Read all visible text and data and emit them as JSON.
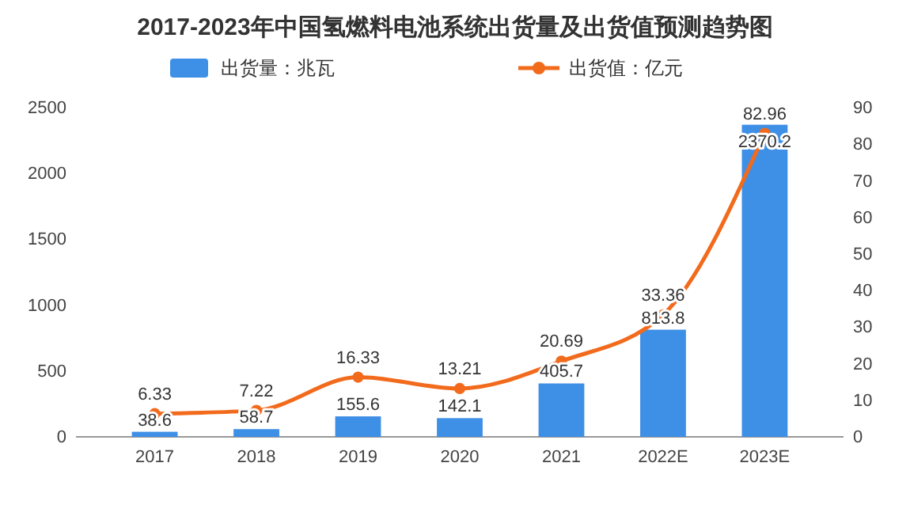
{
  "chart_data": {
    "type": "bar",
    "title": "2017-2023年中国氢燃料电池系统出货量及出货值预测趋势图",
    "categories": [
      "2017",
      "2018",
      "2019",
      "2020",
      "2021",
      "2022E",
      "2023E"
    ],
    "series": [
      {
        "name": "出货量：兆瓦",
        "color": "#3e8fe6",
        "values": [
          38.6,
          58.7,
          155.6,
          142.1,
          405.7,
          813.8,
          2370.2
        ]
      },
      {
        "name": "出货值：亿元",
        "type": "line",
        "axis": "y2",
        "color": "#f26b1d",
        "marker": "circle",
        "values": [
          6.33,
          7.22,
          16.33,
          13.21,
          20.69,
          33.36,
          82.96
        ]
      }
    ],
    "ylim": [
      0,
      2500
    ],
    "yticks": [
      0,
      500,
      1000,
      1500,
      2000,
      2500
    ],
    "y2lim": [
      0,
      90
    ],
    "y2ticks": [
      0,
      10,
      20,
      30,
      40,
      50,
      60,
      70,
      80,
      90
    ],
    "data_labels": true,
    "legend": "top",
    "grid": false
  }
}
